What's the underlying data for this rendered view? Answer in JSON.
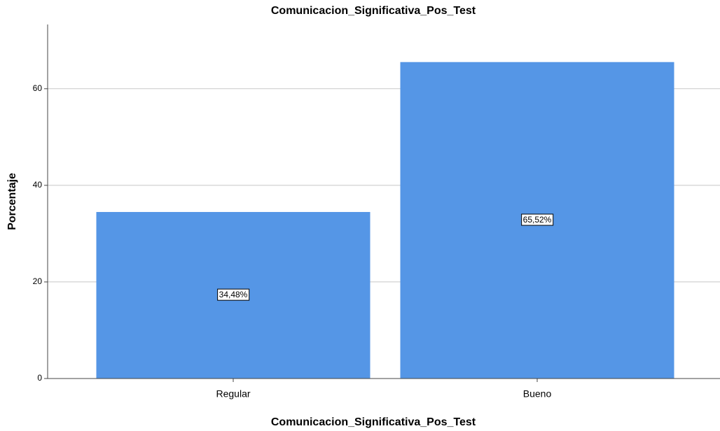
{
  "chart_data": {
    "type": "bar",
    "title": "Comunicacion_Significativa_Pos_Test",
    "x_label": "Comunicacion_Significativa_Pos_Test",
    "y_label": "Porcentaje",
    "categories": [
      "Regular",
      "Bueno"
    ],
    "values": [
      34.48,
      65.52
    ],
    "value_labels": [
      "34,48%",
      "65,52%"
    ],
    "color": "#5596e6",
    "ylim": [
      0,
      73.3
    ],
    "yticks": [
      0,
      20,
      40,
      60
    ],
    "grid": true
  }
}
